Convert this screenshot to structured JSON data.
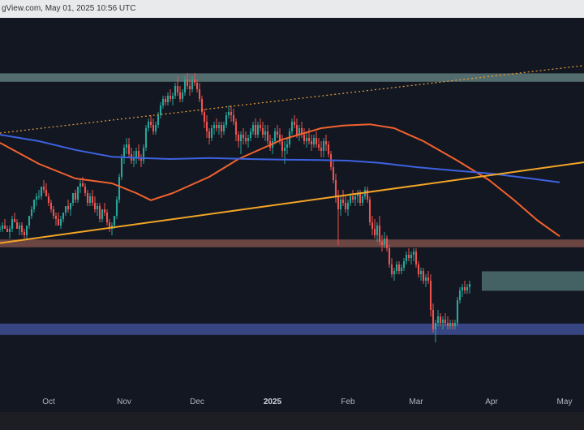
{
  "header": {
    "text": "gView.com, May 01, 2025 10:56 UTC"
  },
  "chart_data": {
    "type": "candlestick",
    "x_ticks": [
      {
        "label": "Oct",
        "day": 14,
        "bold": false
      },
      {
        "label": "Nov",
        "day": 45,
        "bold": false
      },
      {
        "label": "Dec",
        "day": 75,
        "bold": false
      },
      {
        "label": "2025",
        "day": 106,
        "bold": true
      },
      {
        "label": "Feb",
        "day": 137,
        "bold": false
      },
      {
        "label": "Mar",
        "day": 165,
        "bold": false
      },
      {
        "label": "Apr",
        "day": 196,
        "bold": false
      },
      {
        "label": "May",
        "day": 226,
        "bold": false
      }
    ],
    "x_range": [
      -6,
      234
    ],
    "y_range": [
      0,
      100
    ],
    "zones": [
      {
        "name": "resistance-zone-top",
        "y": [
          91.3,
          93.9
        ],
        "x": [
          -6,
          234
        ],
        "color": "#5f7b7b"
      },
      {
        "name": "supply-zone",
        "y": [
          40.3,
          42.7
        ],
        "x": [
          -6,
          234
        ],
        "color": "#7a4e48"
      },
      {
        "name": "demand-zone-mid",
        "y": [
          26.9,
          32.9
        ],
        "x": [
          192,
          234
        ],
        "color": "#4d6e70"
      },
      {
        "name": "support-zone-bottom",
        "y": [
          13.3,
          16.8
        ],
        "x": [
          -6,
          234
        ],
        "color": "#3e4f93"
      }
    ],
    "lines": [
      {
        "name": "rising-trendline-dotted",
        "points": [
          [
            -6,
            75.5
          ],
          [
            234,
            96.3
          ]
        ],
        "color": "#e8a13a",
        "dashed": true
      },
      {
        "name": "rising-trendline",
        "points": [
          [
            -6,
            41.6
          ],
          [
            234,
            66.5
          ]
        ],
        "color": "#f3a526",
        "dashed": false
      }
    ],
    "moving_averages": [
      {
        "name": "ma-100",
        "color": "#f2622e",
        "points": [
          [
            -6,
            72.5
          ],
          [
            10,
            66
          ],
          [
            25,
            61.5
          ],
          [
            40,
            60
          ],
          [
            50,
            57
          ],
          [
            56,
            54.8
          ],
          [
            65,
            57
          ],
          [
            80,
            62
          ],
          [
            92,
            67.5
          ],
          [
            110,
            73.5
          ],
          [
            126,
            77
          ],
          [
            135,
            77.8
          ],
          [
            146,
            78.2
          ],
          [
            156,
            77
          ],
          [
            168,
            73
          ],
          [
            182,
            67
          ],
          [
            195,
            61
          ],
          [
            205,
            55
          ],
          [
            215,
            48.5
          ],
          [
            224,
            43.7
          ]
        ]
      },
      {
        "name": "ma-200",
        "color": "#3d62e0",
        "points": [
          [
            -6,
            75
          ],
          [
            10,
            73
          ],
          [
            25,
            70.3
          ],
          [
            40,
            68.2
          ],
          [
            52,
            67.8
          ],
          [
            64,
            67.5
          ],
          [
            80,
            67.8
          ],
          [
            96,
            67.5
          ],
          [
            110,
            67.3
          ],
          [
            125,
            67.2
          ],
          [
            137,
            67
          ],
          [
            150,
            66.3
          ],
          [
            165,
            65
          ],
          [
            180,
            64
          ],
          [
            196,
            63
          ],
          [
            212,
            61.5
          ],
          [
            224,
            60.3
          ]
        ]
      }
    ],
    "ohlc": [
      [
        -6,
        46,
        47,
        45,
        46
      ],
      [
        -5,
        46,
        48,
        45,
        47
      ],
      [
        -4,
        47,
        49,
        46,
        46
      ],
      [
        -3,
        46,
        47,
        45,
        45
      ],
      [
        -2,
        45,
        47,
        43,
        46
      ],
      [
        -1,
        46,
        50,
        45,
        49
      ],
      [
        0,
        49,
        51,
        48,
        48
      ],
      [
        1,
        48,
        49,
        46,
        46
      ],
      [
        2,
        46,
        48,
        44,
        47
      ],
      [
        3,
        47,
        48,
        44,
        45
      ],
      [
        4,
        45,
        46,
        43,
        44
      ],
      [
        5,
        44,
        47,
        43,
        47
      ],
      [
        6,
        47,
        50,
        46,
        50
      ],
      [
        7,
        50,
        53,
        49,
        52
      ],
      [
        8,
        52,
        55,
        51,
        55
      ],
      [
        9,
        55,
        57,
        53,
        56
      ],
      [
        10,
        56,
        58,
        55,
        56
      ],
      [
        11,
        56,
        59,
        55,
        59
      ],
      [
        12,
        59,
        61,
        57,
        58
      ],
      [
        13,
        58,
        60,
        56,
        56
      ],
      [
        14,
        56,
        57,
        53,
        54
      ],
      [
        15,
        54,
        55,
        51,
        52
      ],
      [
        16,
        52,
        53,
        49,
        50
      ],
      [
        17,
        50,
        51,
        47,
        49
      ],
      [
        18,
        49,
        51,
        47,
        47
      ],
      [
        19,
        47,
        50,
        46,
        49
      ],
      [
        20,
        49,
        51,
        48,
        51
      ],
      [
        21,
        51,
        53,
        50,
        53
      ],
      [
        22,
        53,
        55,
        51,
        52
      ],
      [
        23,
        52,
        54,
        50,
        54
      ],
      [
        24,
        54,
        57,
        53,
        57
      ],
      [
        25,
        57,
        58,
        54,
        55
      ],
      [
        26,
        55,
        59,
        54,
        59
      ],
      [
        27,
        59,
        61,
        57,
        60
      ],
      [
        28,
        60,
        62,
        59,
        59
      ],
      [
        29,
        59,
        60,
        56,
        57
      ],
      [
        30,
        57,
        58,
        53,
        54
      ],
      [
        31,
        54,
        57,
        53,
        56
      ],
      [
        32,
        56,
        58,
        53,
        54
      ],
      [
        33,
        54,
        56,
        51,
        52
      ],
      [
        34,
        52,
        54,
        50,
        53
      ],
      [
        35,
        53,
        54,
        48,
        49
      ],
      [
        36,
        49,
        52,
        48,
        52
      ],
      [
        37,
        52,
        54,
        50,
        51
      ],
      [
        38,
        51,
        52,
        47,
        48
      ],
      [
        39,
        48,
        49,
        45,
        46
      ],
      [
        40,
        46,
        48,
        44,
        47
      ],
      [
        41,
        47,
        50,
        46,
        50
      ],
      [
        42,
        50,
        56,
        49,
        55
      ],
      [
        43,
        55,
        63,
        54,
        62
      ],
      [
        44,
        62,
        69,
        61,
        68
      ],
      [
        45,
        68,
        72,
        66,
        71
      ],
      [
        46,
        71,
        74,
        69,
        72
      ],
      [
        47,
        72,
        74,
        68,
        69
      ],
      [
        48,
        69,
        71,
        66,
        67
      ],
      [
        49,
        67,
        70,
        65,
        68
      ],
      [
        50,
        68,
        71,
        66,
        70
      ],
      [
        51,
        70,
        72,
        67,
        68
      ],
      [
        52,
        68,
        69,
        65,
        67
      ],
      [
        53,
        67,
        72,
        66,
        71
      ],
      [
        54,
        71,
        78,
        70,
        77
      ],
      [
        55,
        77,
        80,
        76,
        79
      ],
      [
        56,
        79,
        81,
        77,
        78
      ],
      [
        57,
        78,
        80,
        75,
        76
      ],
      [
        58,
        76,
        79,
        75,
        78
      ],
      [
        59,
        78,
        82,
        77,
        81
      ],
      [
        60,
        81,
        85,
        80,
        84
      ],
      [
        61,
        84,
        87,
        83,
        86
      ],
      [
        62,
        86,
        87,
        84,
        85
      ],
      [
        63,
        85,
        88,
        84,
        87
      ],
      [
        64,
        87,
        89,
        85,
        86
      ],
      [
        65,
        86,
        88,
        84,
        87
      ],
      [
        66,
        87,
        91,
        86,
        90
      ],
      [
        67,
        90,
        93,
        87,
        88
      ],
      [
        68,
        88,
        90,
        85,
        86
      ],
      [
        69,
        86,
        89,
        85,
        88
      ],
      [
        70,
        88,
        93,
        87,
        92
      ],
      [
        71,
        92,
        94,
        89,
        90
      ],
      [
        72,
        90,
        92,
        87,
        89
      ],
      [
        73,
        89,
        93,
        88,
        92
      ],
      [
        74,
        92,
        94,
        90,
        91
      ],
      [
        75,
        91,
        92,
        88,
        89
      ],
      [
        76,
        89,
        91,
        85,
        86
      ],
      [
        77,
        86,
        87,
        81,
        82
      ],
      [
        78,
        82,
        83,
        77,
        79
      ],
      [
        79,
        79,
        81,
        74,
        76
      ],
      [
        80,
        76,
        77,
        72,
        74
      ],
      [
        81,
        74,
        78,
        73,
        77
      ],
      [
        82,
        77,
        79,
        75,
        78
      ],
      [
        83,
        78,
        80,
        76,
        77
      ],
      [
        84,
        77,
        79,
        75,
        78
      ],
      [
        85,
        78,
        79,
        74,
        76
      ],
      [
        86,
        76,
        79,
        75,
        78
      ],
      [
        87,
        78,
        82,
        77,
        81
      ],
      [
        88,
        81,
        84,
        80,
        82
      ],
      [
        89,
        82,
        84,
        79,
        81
      ],
      [
        90,
        81,
        83,
        78,
        79
      ],
      [
        91,
        79,
        80,
        73,
        75
      ],
      [
        92,
        75,
        76,
        71,
        73
      ],
      [
        93,
        73,
        76,
        69,
        75
      ],
      [
        94,
        75,
        77,
        72,
        74
      ],
      [
        95,
        74,
        76,
        72,
        73
      ],
      [
        96,
        73,
        75,
        71,
        74
      ],
      [
        97,
        74,
        77,
        73,
        76
      ],
      [
        98,
        76,
        79,
        75,
        78
      ],
      [
        99,
        78,
        80,
        74,
        75
      ],
      [
        100,
        75,
        79,
        74,
        78
      ],
      [
        101,
        78,
        80,
        76,
        77
      ],
      [
        102,
        77,
        79,
        74,
        75
      ],
      [
        103,
        75,
        78,
        73,
        76
      ],
      [
        104,
        76,
        78,
        72,
        73
      ],
      [
        105,
        73,
        75,
        70,
        71
      ],
      [
        106,
        71,
        74,
        69,
        73
      ],
      [
        107,
        73,
        77,
        72,
        76
      ],
      [
        108,
        76,
        78,
        74,
        75
      ],
      [
        109,
        75,
        77,
        72,
        73
      ],
      [
        110,
        73,
        75,
        68,
        70
      ],
      [
        111,
        70,
        73,
        66,
        71
      ],
      [
        112,
        71,
        74,
        69,
        72
      ],
      [
        113,
        72,
        77,
        71,
        76
      ],
      [
        114,
        76,
        80,
        75,
        79
      ],
      [
        115,
        79,
        81,
        77,
        78
      ],
      [
        116,
        78,
        80,
        74,
        75
      ],
      [
        117,
        75,
        78,
        73,
        77
      ],
      [
        118,
        77,
        79,
        74,
        75
      ],
      [
        119,
        75,
        77,
        72,
        73
      ],
      [
        120,
        73,
        76,
        71,
        74
      ],
      [
        121,
        74,
        77,
        72,
        73
      ],
      [
        122,
        73,
        75,
        70,
        72
      ],
      [
        123,
        72,
        75,
        71,
        74
      ],
      [
        124,
        74,
        76,
        71,
        72
      ],
      [
        125,
        72,
        74,
        70,
        71
      ],
      [
        126,
        71,
        73,
        68,
        70
      ],
      [
        127,
        70,
        74,
        68,
        73
      ],
      [
        128,
        73,
        75,
        70,
        72
      ],
      [
        129,
        72,
        73,
        68,
        69
      ],
      [
        130,
        69,
        70,
        64,
        65
      ],
      [
        131,
        65,
        67,
        60,
        61
      ],
      [
        132,
        61,
        63,
        54,
        56
      ],
      [
        133,
        56,
        58,
        41,
        52
      ],
      [
        134,
        52,
        56,
        50,
        55
      ],
      [
        135,
        55,
        58,
        53,
        54
      ],
      [
        136,
        54,
        56,
        51,
        52
      ],
      [
        137,
        52,
        55,
        50,
        54
      ],
      [
        138,
        54,
        57,
        53,
        56
      ],
      [
        139,
        56,
        58,
        54,
        55
      ],
      [
        140,
        55,
        57,
        53,
        56
      ],
      [
        141,
        56,
        58,
        54,
        57
      ],
      [
        142,
        57,
        58,
        53,
        54
      ],
      [
        143,
        54,
        57,
        53,
        56
      ],
      [
        144,
        56,
        59,
        55,
        58
      ],
      [
        145,
        58,
        59,
        54,
        55
      ],
      [
        146,
        55,
        56,
        47,
        48
      ],
      [
        147,
        48,
        50,
        44,
        46
      ],
      [
        148,
        46,
        49,
        43,
        44
      ],
      [
        149,
        44,
        48,
        42,
        47
      ],
      [
        150,
        47,
        50,
        41,
        42
      ],
      [
        151,
        42,
        44,
        39,
        41
      ],
      [
        152,
        41,
        45,
        40,
        43
      ],
      [
        153,
        43,
        44,
        39,
        40
      ],
      [
        154,
        40,
        41,
        34,
        35
      ],
      [
        155,
        35,
        37,
        31,
        32
      ],
      [
        156,
        32,
        34,
        30,
        33
      ],
      [
        157,
        33,
        36,
        32,
        35
      ],
      [
        158,
        35,
        36,
        32,
        33
      ],
      [
        159,
        33,
        35,
        32,
        34
      ],
      [
        160,
        34,
        37,
        33,
        36
      ],
      [
        161,
        36,
        39,
        35,
        38
      ],
      [
        162,
        38,
        40,
        36,
        37
      ],
      [
        163,
        37,
        39,
        35,
        38
      ],
      [
        164,
        38,
        40,
        36,
        39
      ],
      [
        165,
        39,
        40,
        34,
        35
      ],
      [
        166,
        35,
        36,
        31,
        32
      ],
      [
        167,
        32,
        34,
        30,
        33
      ],
      [
        168,
        33,
        34,
        29,
        30
      ],
      [
        169,
        30,
        32,
        28,
        31
      ],
      [
        170,
        31,
        33,
        29,
        30
      ],
      [
        171,
        30,
        32,
        19,
        21
      ],
      [
        172,
        21,
        23,
        14,
        15
      ],
      [
        173,
        15,
        18,
        11,
        17
      ],
      [
        174,
        17,
        21,
        16,
        19
      ],
      [
        175,
        19,
        20,
        16,
        17
      ],
      [
        176,
        17,
        19,
        15,
        18
      ],
      [
        177,
        18,
        20,
        16,
        17
      ],
      [
        178,
        17,
        19,
        15,
        16
      ],
      [
        179,
        16,
        18,
        15,
        17
      ],
      [
        180,
        17,
        18,
        15,
        16
      ],
      [
        181,
        16,
        18,
        15,
        17
      ],
      [
        182,
        17,
        25,
        16,
        24
      ],
      [
        183,
        24,
        28,
        23,
        27
      ],
      [
        184,
        27,
        29,
        25,
        28
      ],
      [
        185,
        28,
        30,
        26,
        27
      ],
      [
        186,
        27,
        29,
        26,
        28
      ],
      [
        187,
        28,
        30,
        26,
        29
      ]
    ]
  }
}
